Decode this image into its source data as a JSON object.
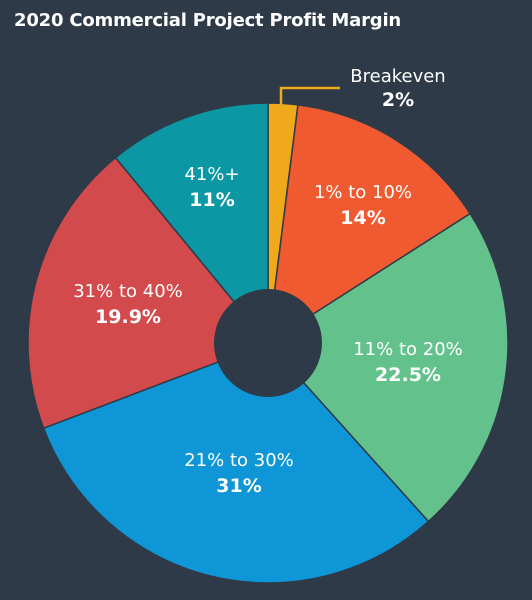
{
  "chart_data": {
    "type": "pie",
    "title": "2020 Commercial Project Profit Margin",
    "slices": [
      {
        "label": "Breakeven",
        "value": 2,
        "display": "2%",
        "color": "#eeaa1a"
      },
      {
        "label": "1% to 10%",
        "value": 14,
        "display": "14%",
        "color": "#f05a30"
      },
      {
        "label": "11% to 20%",
        "value": 22.5,
        "display": "22.5%",
        "color": "#63c28b"
      },
      {
        "label": "21% to 30%",
        "value": 31,
        "display": "31%",
        "color": "#0f96d6"
      },
      {
        "label": "31% to 40%",
        "value": 19.9,
        "display": "19.9%",
        "color": "#d24a4c"
      },
      {
        "label": "41%+",
        "value": 11,
        "display": "11%",
        "color": "#0b97a4"
      }
    ],
    "leader_color": "#eeaa1a",
    "background": "#2e3a48"
  }
}
